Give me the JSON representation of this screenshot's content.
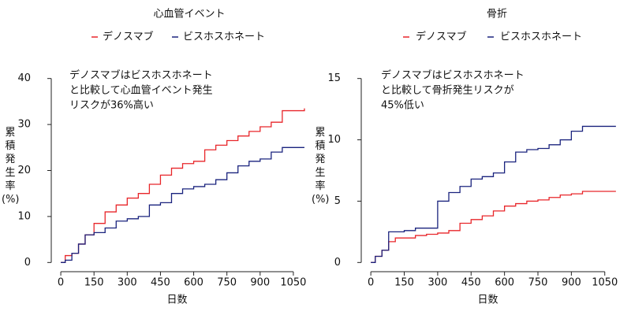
{
  "chart_data": [
    {
      "type": "line",
      "step": true,
      "title": "心血管イベント",
      "annotation": [
        "デノスマブはビスホスホネート",
        "と比較して心血管イベント発生",
        "リスクが36%高い"
      ],
      "annotation_color": "#e8262a",
      "xlabel": "日数",
      "ylabel": "累積発生率(%)",
      "x": [
        0,
        20,
        50,
        80,
        110,
        150,
        200,
        250,
        300,
        350,
        400,
        450,
        500,
        550,
        600,
        650,
        700,
        750,
        800,
        850,
        900,
        950,
        1000,
        1100
      ],
      "series": [
        {
          "name": "デノスマブ",
          "color": "#e8262a",
          "values": [
            0,
            1.5,
            2,
            4,
            6,
            8.5,
            11,
            12.5,
            14,
            15,
            17,
            19,
            20.5,
            21.5,
            22,
            24.5,
            25.5,
            26.5,
            27.5,
            28.5,
            29.5,
            30.5,
            33,
            33.5
          ]
        },
        {
          "name": "ビスホスホネート",
          "color": "#1a237e",
          "values": [
            0,
            0.5,
            2,
            4,
            6,
            6.5,
            7.5,
            9,
            9.5,
            10,
            12.5,
            13,
            15,
            16,
            16.5,
            17,
            18,
            19.5,
            21,
            22,
            22.5,
            24,
            25,
            25
          ]
        }
      ],
      "xlim": [
        -43,
        1150
      ],
      "xticks": [
        0,
        150,
        300,
        450,
        600,
        750,
        900,
        1050
      ],
      "ylim": [
        -2,
        42
      ],
      "yticks": [
        0,
        10,
        20,
        30,
        40
      ]
    },
    {
      "type": "line",
      "step": true,
      "title": "骨折",
      "annotation": [
        "デノスマブはビスホスホネート",
        "と比較して骨折発生リスクが",
        "45%低い"
      ],
      "annotation_color": "#e8262a",
      "xlabel": "日数",
      "ylabel": "累積発生率(%)",
      "x": [
        0,
        20,
        50,
        80,
        110,
        150,
        200,
        250,
        300,
        350,
        400,
        450,
        500,
        550,
        600,
        650,
        700,
        750,
        800,
        850,
        900,
        950,
        1000,
        1100
      ],
      "series": [
        {
          "name": "デノスマブ",
          "color": "#e8262a",
          "values": [
            0,
            0.5,
            1,
            1.7,
            2,
            2,
            2.2,
            2.3,
            2.4,
            2.6,
            3.2,
            3.5,
            3.8,
            4.2,
            4.6,
            4.8,
            5,
            5.1,
            5.3,
            5.5,
            5.6,
            5.8,
            5.8,
            5.8
          ]
        },
        {
          "name": "ビスホスホネート",
          "color": "#1a237e",
          "values": [
            0,
            0.5,
            1,
            2.5,
            2.5,
            2.6,
            2.8,
            2.8,
            5,
            5.7,
            6.2,
            6.8,
            7,
            7.3,
            8.2,
            9,
            9.2,
            9.3,
            9.6,
            10,
            10.7,
            11.1,
            11.1,
            11.1
          ]
        }
      ],
      "xlim": [
        -43,
        1150
      ],
      "xticks": [
        0,
        150,
        300,
        450,
        600,
        750,
        900,
        1050
      ],
      "ylim": [
        -0.75,
        15.75
      ],
      "yticks": [
        0,
        5,
        10,
        15
      ]
    }
  ]
}
